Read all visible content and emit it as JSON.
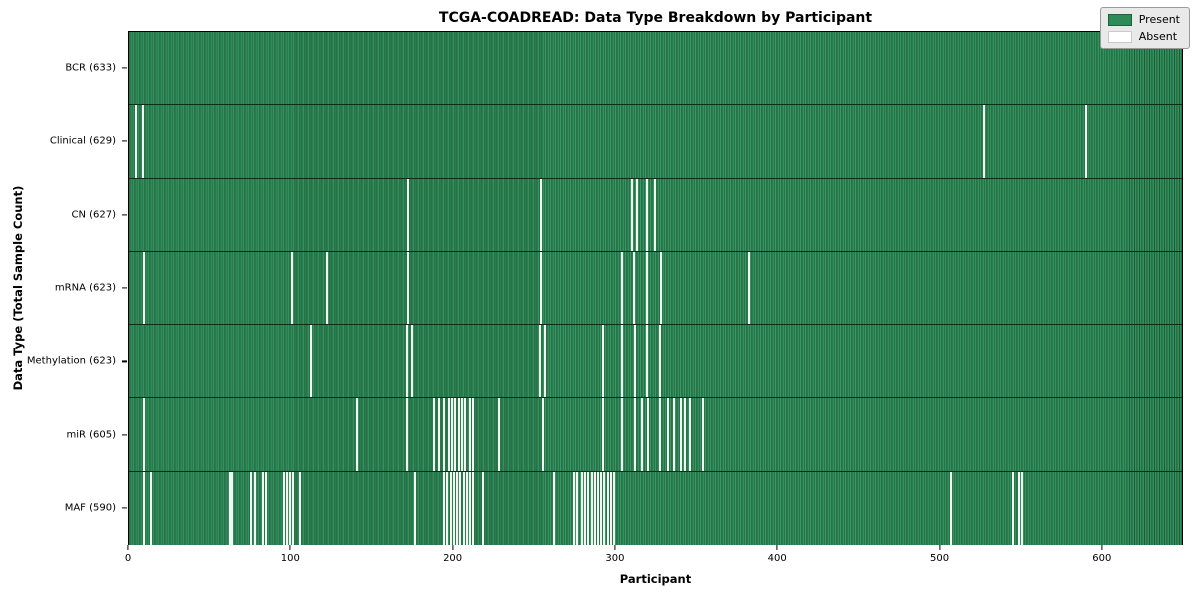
{
  "title": "TCGA-COADREAD: Data Type Breakdown by Participant",
  "colors": {
    "present": "#2e8b57",
    "bar_edge": "#1c5c39",
    "absent": "#f4f4f2",
    "legend_bg": "#e9e9e9",
    "axis": "#000000"
  },
  "chart_data": {
    "type": "heatmap",
    "title": "TCGA-COADREAD: Data Type Breakdown by Participant",
    "xlabel": "Participant",
    "ylabel": "Data Type (Total Sample Count)",
    "xlim": [
      0,
      650
    ],
    "x_ticks": [
      0,
      100,
      200,
      300,
      400,
      500,
      600
    ],
    "total_participants": 633,
    "grid": false,
    "legend": {
      "position": "upper right",
      "entries": [
        {
          "label": "Present",
          "color": "#2e8b57"
        },
        {
          "label": "Absent",
          "color": "#ffffff"
        }
      ]
    },
    "rows": [
      {
        "label": "BCR (633)",
        "name": "BCR",
        "present_count": 633,
        "absent_participants": []
      },
      {
        "label": "Clinical (629)",
        "name": "Clinical",
        "present_count": 629,
        "absent_participants": [
          4,
          8,
          527,
          590
        ]
      },
      {
        "label": "CN (627)",
        "name": "CN",
        "present_count": 627,
        "absent_participants": [
          172,
          254,
          310,
          313,
          319,
          324
        ]
      },
      {
        "label": "mRNA (623)",
        "name": "mRNA",
        "present_count": 623,
        "absent_participants": [
          9,
          100,
          122,
          172,
          254,
          304,
          311,
          319,
          328,
          382
        ]
      },
      {
        "label": "Methylation (623)",
        "name": "Methylation",
        "present_count": 623,
        "absent_participants": [
          112,
          171,
          174,
          253,
          256,
          292,
          304,
          312,
          319,
          327
        ]
      },
      {
        "label": "miR (605)",
        "name": "miR",
        "present_count": 605,
        "absent_participants": [
          9,
          140,
          171,
          188,
          191,
          194,
          197,
          199,
          201,
          203,
          205,
          207,
          210,
          212,
          228,
          255,
          292,
          304,
          312,
          316,
          320,
          327,
          332,
          336,
          340,
          343,
          346,
          354
        ]
      },
      {
        "label": "MAF (590)",
        "name": "MAF",
        "present_count": 590,
        "absent_participants": [
          9,
          13,
          62,
          63,
          75,
          77,
          82,
          84,
          95,
          97,
          99,
          101,
          105,
          176,
          194,
          196,
          198,
          200,
          202,
          204,
          206,
          208,
          210,
          212,
          218,
          262,
          274,
          276,
          279,
          281,
          283,
          285,
          287,
          289,
          291,
          293,
          295,
          297,
          299,
          507,
          545,
          549,
          551
        ]
      }
    ]
  }
}
